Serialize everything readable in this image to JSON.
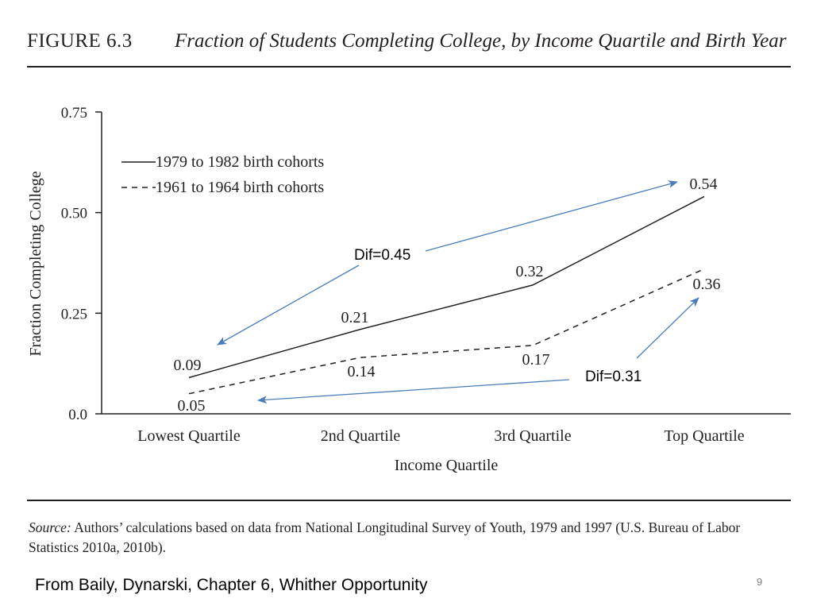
{
  "figure": {
    "label": "FIGURE 6.3",
    "title": "Fraction of Students Completing College, by Income Quartile and Birth Year"
  },
  "chart_data": {
    "type": "line",
    "categories": [
      "Lowest Quartile",
      "2nd Quartile",
      "3rd Quartile",
      "Top Quartile"
    ],
    "series": [
      {
        "name": "1979 to 1982 birth cohorts",
        "values": [
          0.09,
          0.21,
          0.32,
          0.54
        ],
        "line_style": "solid",
        "labels": [
          "0.09",
          "0.21",
          "0.32",
          "0.54"
        ]
      },
      {
        "name": "1961 to 1964 birth cohorts",
        "values": [
          0.05,
          0.14,
          0.17,
          0.36
        ],
        "line_style": "dashed",
        "labels": [
          "0.05",
          "0.14",
          "0.17",
          "0.36"
        ]
      }
    ],
    "ylim": [
      0,
      0.75
    ],
    "yticks": [
      0,
      0.25,
      0.5,
      0.75
    ],
    "ytick_labels": [
      "0.0",
      "0.25",
      "0.50",
      "0.75"
    ],
    "xlabel": "Income Quartile",
    "ylabel": "Fraction Completing College",
    "legend_position": "top-left",
    "grid": false,
    "annotations": [
      {
        "text": "Dif=0.45",
        "color": "#4a7ebb"
      },
      {
        "text": "Dif=0.31",
        "color": "#4a7ebb"
      }
    ],
    "axis_color": "#231f20",
    "arrow_color": "#4a7ebb"
  },
  "source": {
    "label": "Source:",
    "text": " Authors’ calculations based on data from National Longitudinal Survey of Youth, 1979 and 1997 (U.S. Bureau of Labor Statistics 2010a, 2010b)."
  },
  "footer": {
    "credit": "From Baily, Dynarski, Chapter 6, Whither Opportunity",
    "page_number": "9"
  }
}
